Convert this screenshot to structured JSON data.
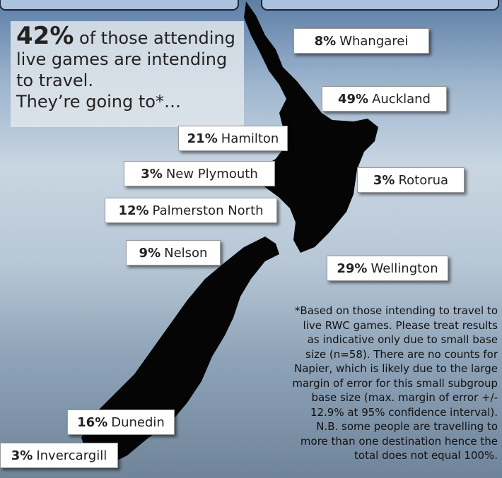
{
  "headline": {
    "pct": "42%",
    "lines": [
      " of those attending",
      "live games are intending",
      "to travel.",
      "They’re going to*…"
    ]
  },
  "destinations": [
    {
      "pct": "8%",
      "name": "Whangarei"
    },
    {
      "pct": "49%",
      "name": "Auckland"
    },
    {
      "pct": "21%",
      "name": "Hamilton"
    },
    {
      "pct": "3%",
      "name": "New Plymouth"
    },
    {
      "pct": "3%",
      "name": "Rotorua"
    },
    {
      "pct": "12%",
      "name": "Palmerston North"
    },
    {
      "pct": "9%",
      "name": "Nelson"
    },
    {
      "pct": "29%",
      "name": "Wellington"
    },
    {
      "pct": "16%",
      "name": "Dunedin"
    },
    {
      "pct": "3%",
      "name": "Invercargill"
    }
  ],
  "footnote": [
    "*Based on those intending to travel to",
    "live RWC games. Please treat results",
    "as indicative only due to small base",
    "size (n=58). There are no counts for",
    "Napier, which is likely due to the large",
    "margin of error for this small subgroup",
    "base size (max. margin of error +/-",
    "12.9% at 95% confidence interval).",
    "N.B. some people are travelling to",
    "more than one destination hence the",
    "total does not equal 100%."
  ]
}
